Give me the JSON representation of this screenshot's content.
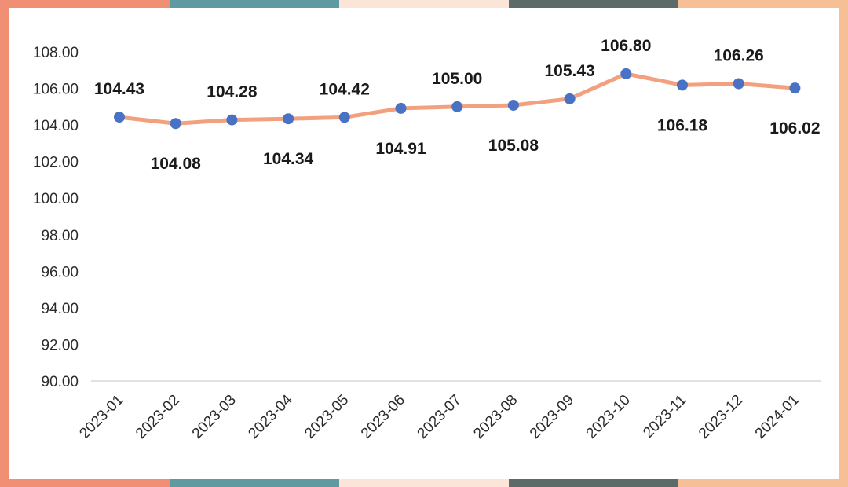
{
  "frame": {
    "segment_colors": [
      "#f08f74",
      "#5f9aa0",
      "#fbe5d8",
      "#5c6b68",
      "#f7bf96"
    ],
    "left_color": "#f08f74",
    "right_color": "#f7bf96"
  },
  "chart_data": {
    "type": "line",
    "categories": [
      "2023-01",
      "2023-02",
      "2023-03",
      "2023-04",
      "2023-05",
      "2023-06",
      "2023-07",
      "2023-08",
      "2023-09",
      "2023-10",
      "2023-11",
      "2023-12",
      "2024-01"
    ],
    "series": [
      {
        "values": [
          104.43,
          104.08,
          104.28,
          104.34,
          104.42,
          104.91,
          105.0,
          105.08,
          105.43,
          106.8,
          106.18,
          106.26,
          106.02
        ],
        "line_color": "#f3a07f",
        "marker_color": "#4a72c4"
      }
    ],
    "ylim": [
      90,
      108
    ],
    "yticks": [
      "90.00",
      "92.00",
      "94.00",
      "96.00",
      "98.00",
      "100.00",
      "102.00",
      "104.00",
      "106.00",
      "108.00"
    ],
    "data_labels": [
      "104.43",
      "104.08",
      "104.28",
      "104.34",
      "104.42",
      "104.91",
      "105.00",
      "105.08",
      "105.43",
      "106.80",
      "106.18",
      "106.26",
      "106.02"
    ],
    "label_positions": [
      "above",
      "below",
      "above",
      "below",
      "above",
      "below",
      "above",
      "below",
      "above",
      "above",
      "below",
      "above",
      "below"
    ],
    "gridlines": false,
    "legend": "none"
  }
}
